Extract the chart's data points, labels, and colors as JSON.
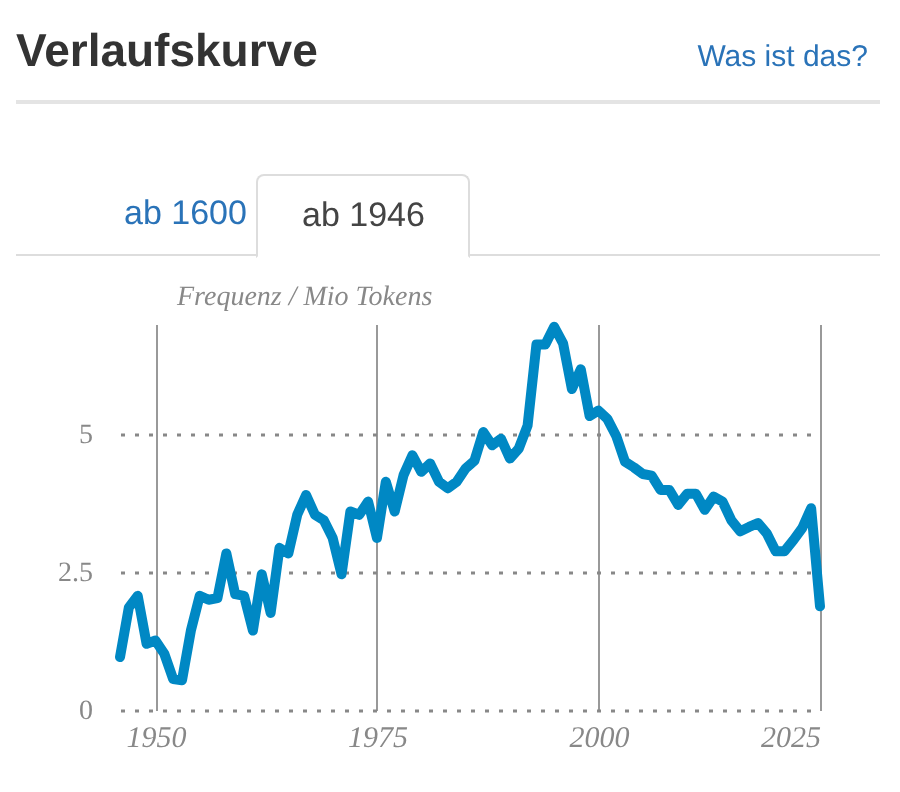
{
  "chart_data": {
    "type": "line",
    "title": "Verlaufskurve",
    "annotations": [
      "Was ist das?",
      "ab 1600",
      "ab 1946"
    ],
    "ylabel": "Frequenz / Mio Tokens",
    "x": [
      1946,
      1947,
      1948,
      1949,
      1950,
      1951,
      1952,
      1953,
      1954,
      1955,
      1956,
      1957,
      1958,
      1959,
      1960,
      1961,
      1962,
      1963,
      1964,
      1965,
      1966,
      1967,
      1968,
      1969,
      1970,
      1971,
      1972,
      1973,
      1974,
      1975,
      1976,
      1977,
      1978,
      1979,
      1980,
      1981,
      1982,
      1983,
      1984,
      1985,
      1986,
      1987,
      1988,
      1989,
      1990,
      1991,
      1992,
      1993,
      1994,
      1995,
      1996,
      1997,
      1998,
      1999,
      2000,
      2001,
      2002,
      2003,
      2004,
      2005,
      2006,
      2007,
      2008,
      2009,
      2010,
      2011,
      2012,
      2013,
      2014,
      2015,
      2016,
      2017,
      2018,
      2019,
      2020,
      2021,
      2022,
      2023,
      2024,
      2025
    ],
    "series": [
      {
        "color": "#0088c4",
        "values": [
          0.96,
          1.86,
          2.07,
          1.2,
          1.26,
          1.02,
          0.56,
          0.54,
          1.44,
          2.07,
          2.0,
          2.03,
          2.84,
          2.1,
          2.07,
          1.44,
          2.46,
          1.76,
          2.94,
          2.84,
          3.54,
          3.9,
          3.54,
          3.44,
          3.12,
          2.46,
          3.6,
          3.54,
          3.78,
          3.12,
          4.14,
          3.6,
          4.26,
          4.62,
          4.32,
          4.47,
          4.14,
          4.02,
          4.14,
          4.38,
          4.52,
          5.04,
          4.8,
          4.92,
          4.56,
          4.74,
          5.16,
          6.63,
          6.63,
          6.95,
          6.65,
          5.82,
          6.18,
          5.33,
          5.43,
          5.28,
          4.97,
          4.5,
          4.4,
          4.28,
          4.25,
          3.99,
          3.99,
          3.72,
          3.92,
          3.92,
          3.63,
          3.87,
          3.78,
          3.44,
          3.24,
          3.32,
          3.39,
          3.2,
          2.88,
          2.88,
          3.08,
          3.3,
          3.66,
          1.88
        ]
      }
    ],
    "xlim": [
      1946,
      2025
    ],
    "xticks": [
      1950,
      1975,
      2000,
      2025
    ],
    "ylim": [
      0,
      7
    ],
    "yticks": [
      0,
      2.5,
      5
    ],
    "grid": true,
    "marker": "none",
    "line_style": "solid"
  }
}
